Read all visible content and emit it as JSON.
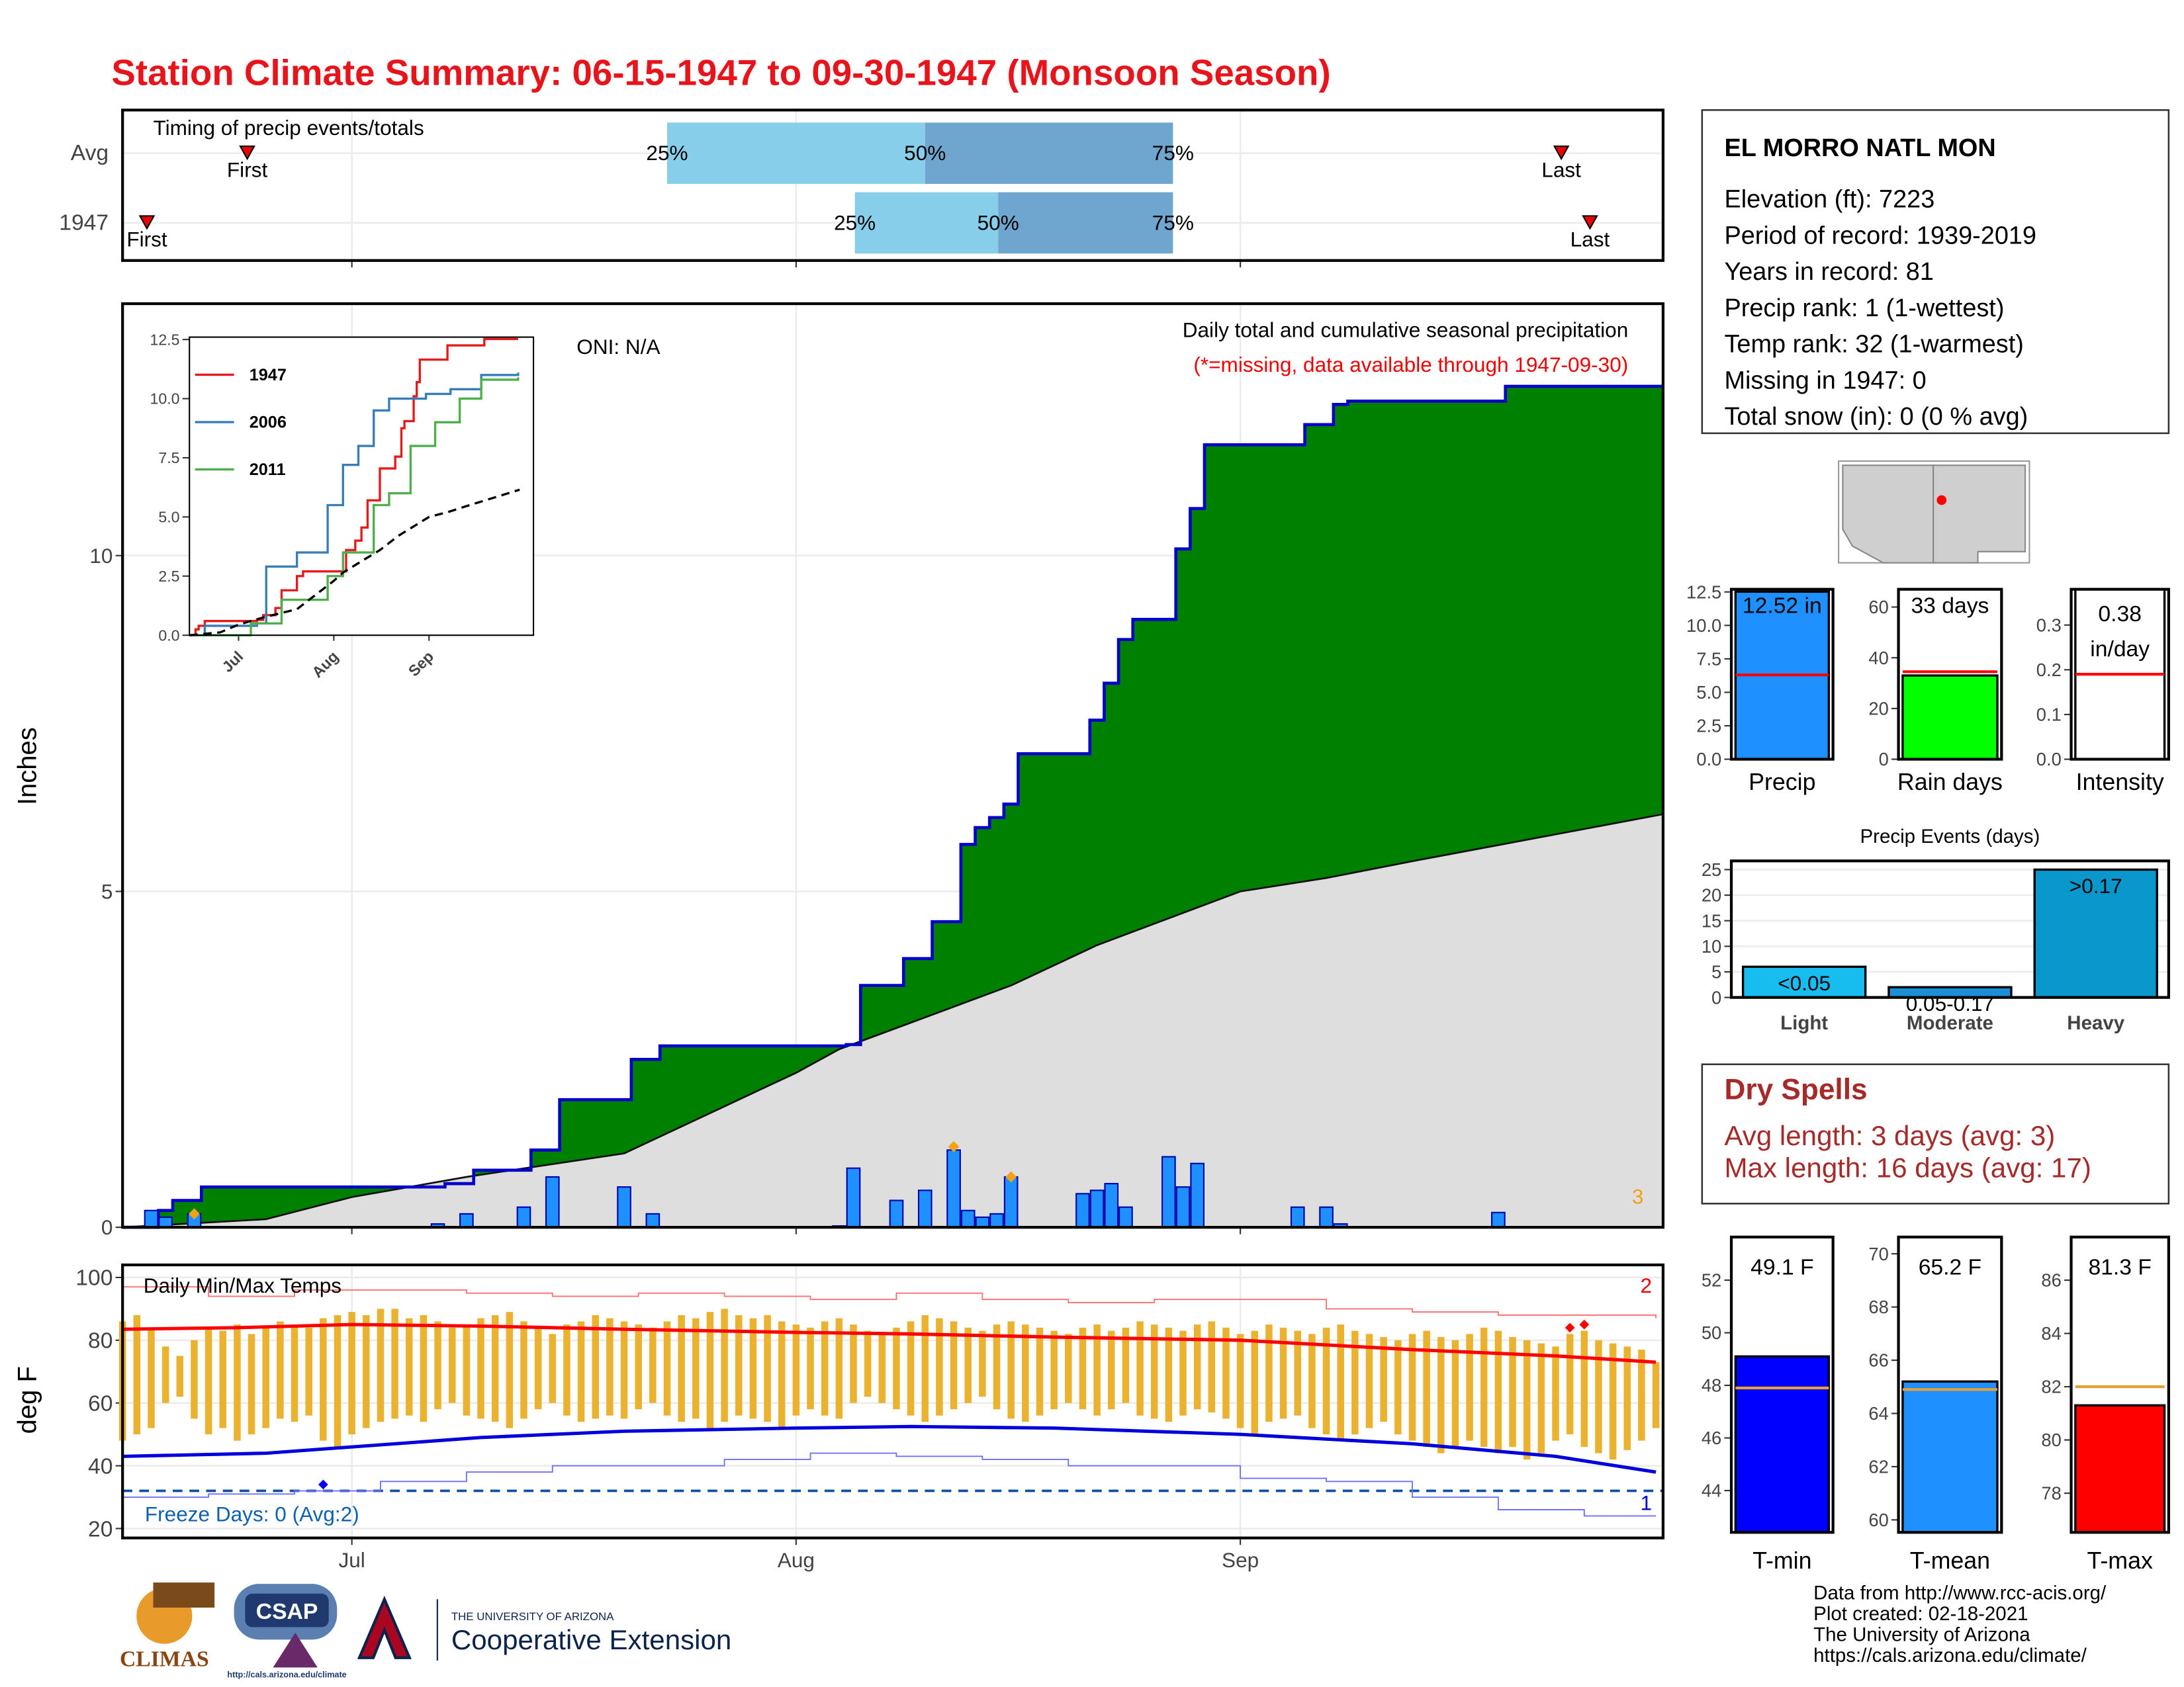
{
  "title": "Station Climate Summary: 06-15-1947 to 09-30-1947 (Monsoon Season)",
  "station": {
    "name": "EL MORRO NATL MON",
    "lines": [
      "Elevation (ft): 7223",
      "Period of record: 1939-2019",
      "Years in record: 81",
      "Precip rank: 1 (1-wettest)",
      "Temp rank: 32 (1-warmest)",
      "Missing in 1947: 0",
      "Total snow (in): 0 (0 % avg)"
    ]
  },
  "dry_spells": {
    "title": "Dry Spells",
    "lines": [
      "Avg length: 3 days (avg: 3)",
      "Max length: 16 days (avg: 17)"
    ]
  },
  "footer": [
    "Data from http://www.rcc-acis.org/",
    "Plot created: 02-18-2021",
    "The University of Arizona",
    "https://cals.arizona.edu/climate/"
  ],
  "logos": {
    "climas": "CLIMAS",
    "csap": "CSAP",
    "csap_url": "http://cals.arizona.edu/climate",
    "university": "THE UNIVERSITY OF ARIZONA",
    "extension": "Cooperative Extension"
  },
  "chart_data": [
    {
      "type": "timing",
      "title": "Timing of precip events/totals",
      "categories": [
        "Avg",
        "1947"
      ],
      "rows": [
        {
          "first": 8.7,
          "q25": 38,
          "q50": 56,
          "q75": 73.3,
          "last": 100.4
        },
        {
          "first": 1.7,
          "q25": 51.1,
          "q50": 61.1,
          "q75": 73.3,
          "last": 102.4
        }
      ],
      "marker_labels": {
        "first": "First",
        "last": "Last",
        "q25": "25%",
        "q50": "50%",
        "q75": "75%"
      },
      "xlim": [
        0,
        107.5
      ],
      "xticks": [
        {
          "value": 16,
          "label": "Jul"
        },
        {
          "value": 47,
          "label": "Aug"
        },
        {
          "value": 78,
          "label": "Sep"
        }
      ]
    },
    {
      "type": "area",
      "ylabel": "Inches",
      "oni": "ONI: N/A",
      "subtitle": "Daily total and cumulative seasonal precipitation",
      "note": "(*=missing, data available through 1947-09-30)",
      "corner_label": "3",
      "xlim": [
        0,
        107.5
      ],
      "xticks": [
        {
          "value": 16,
          "label": "Jul"
        },
        {
          "value": 47,
          "label": "Aug"
        },
        {
          "value": 78,
          "label": "Sep"
        }
      ],
      "ylim": [
        0,
        13.75
      ],
      "yticks": [
        0,
        5,
        10
      ],
      "grid": true,
      "daily": {
        "color": "#1e90ff",
        "x": [
          2,
          3,
          5,
          22,
          24,
          28,
          30,
          35,
          37,
          50,
          51,
          54,
          56,
          58,
          59,
          60,
          61,
          62,
          67,
          68,
          69,
          70,
          73,
          74,
          75,
          82,
          84,
          85,
          96
        ],
        "values": [
          0.25,
          0.15,
          0.2,
          0.05,
          0.2,
          0.3,
          0.75,
          0.6,
          0.2,
          0.02,
          0.88,
          0.4,
          0.55,
          1.15,
          0.25,
          0.15,
          0.2,
          0.75,
          0.5,
          0.55,
          0.65,
          0.3,
          1.05,
          0.6,
          0.95,
          0.3,
          0.3,
          0.05,
          0.22
        ]
      },
      "cumulative_color": "#008000",
      "average": {
        "color": "#dedede",
        "x": [
          0,
          10,
          16,
          24,
          35,
          42,
          47,
          50,
          62,
          68,
          73,
          78,
          84,
          90,
          107.5
        ],
        "values": [
          0,
          0.12,
          0.45,
          0.75,
          1.1,
          1.8,
          2.3,
          2.65,
          3.6,
          4.2,
          4.6,
          5.0,
          5.2,
          5.45,
          6.15
        ]
      },
      "markers": {
        "color": "#f4a018",
        "x": [
          5,
          58,
          62
        ],
        "values": [
          0.2,
          1.2,
          0.75
        ]
      }
    },
    {
      "type": "line",
      "xlim": [
        0,
        112
      ],
      "xticks": [
        {
          "value": 16,
          "label": "Jul"
        },
        {
          "value": 47,
          "label": "Aug"
        },
        {
          "value": 78,
          "label": "Sep"
        }
      ],
      "ylim": [
        0,
        12.6
      ],
      "yticks": [
        {
          "value": 0,
          "label": "0.0"
        },
        2.5,
        {
          "value": 5,
          "label": "5.0"
        },
        7.5,
        {
          "value": 10,
          "label": "10.0"
        },
        12.5
      ],
      "series": [
        {
          "name": "1947",
          "color": "#e41a1c",
          "x": [
            0,
            2,
            3,
            5,
            22,
            24,
            28,
            30,
            35,
            37,
            51,
            54,
            56,
            58,
            62,
            67,
            69,
            70,
            73,
            74,
            75,
            84,
            96,
            107
          ],
          "values": [
            0,
            0.25,
            0.4,
            0.6,
            0.65,
            0.85,
            1.15,
            1.9,
            2.5,
            2.7,
            3.6,
            4.0,
            4.55,
            5.7,
            7.05,
            7.55,
            8.75,
            9.05,
            10.1,
            10.7,
            11.65,
            12.25,
            12.52,
            12.52
          ]
        },
        {
          "name": "2006",
          "color": "#377eb8",
          "x": [
            0,
            5,
            22,
            25,
            35,
            45,
            50,
            55,
            60,
            65,
            77,
            85,
            95,
            107
          ],
          "values": [
            0,
            0.4,
            0.5,
            2.9,
            3.5,
            5.5,
            7.2,
            8.0,
            9.5,
            10.0,
            10.2,
            10.4,
            11.0,
            11.1
          ]
        },
        {
          "name": "2011",
          "color": "#4daf4a",
          "x": [
            0,
            10,
            20,
            30,
            45,
            50,
            60,
            65,
            72,
            80,
            88,
            95,
            107
          ],
          "values": [
            0,
            0,
            0.5,
            1.5,
            2.5,
            3.5,
            5.5,
            6.0,
            8.0,
            9.0,
            10.0,
            10.8,
            10.9
          ]
        },
        {
          "color": "#000000",
          "dash": "dashed",
          "x": [
            0,
            10,
            16,
            24,
            35,
            42,
            47,
            50,
            62,
            68,
            73,
            78,
            84,
            90,
            107.5
          ],
          "values": [
            0,
            0.12,
            0.45,
            0.75,
            1.1,
            1.8,
            2.3,
            2.65,
            3.6,
            4.2,
            4.6,
            5.0,
            5.2,
            5.45,
            6.15
          ]
        }
      ]
    },
    {
      "type": "range",
      "title": "Daily Min/Max Temps",
      "ylabel": "deg F",
      "freeze_text": "Freeze Days: 0 (Avg:2)",
      "high_count": "2",
      "low_count": "1",
      "xlim": [
        0,
        107.5
      ],
      "xticks": [
        {
          "value": 16,
          "label": "Jul"
        },
        {
          "value": 47,
          "label": "Aug"
        },
        {
          "value": 78,
          "label": "Sep"
        }
      ],
      "ylim": [
        17,
        104
      ],
      "yticks": [
        20,
        40,
        60,
        80,
        100
      ],
      "grid": true,
      "bar_color": "#ebb22f",
      "x": [
        0,
        1,
        2,
        3,
        4,
        5,
        6,
        7,
        8,
        9,
        10,
        11,
        12,
        13,
        14,
        15,
        16,
        17,
        18,
        19,
        20,
        21,
        22,
        23,
        24,
        25,
        26,
        27,
        28,
        29,
        30,
        31,
        32,
        33,
        34,
        35,
        36,
        37,
        38,
        39,
        40,
        41,
        42,
        43,
        44,
        45,
        46,
        47,
        48,
        49,
        50,
        51,
        52,
        53,
        54,
        55,
        56,
        57,
        58,
        59,
        60,
        61,
        62,
        63,
        64,
        65,
        66,
        67,
        68,
        69,
        70,
        71,
        72,
        73,
        74,
        75,
        76,
        77,
        78,
        79,
        80,
        81,
        82,
        83,
        84,
        85,
        86,
        87,
        88,
        89,
        90,
        91,
        92,
        93,
        94,
        95,
        96,
        97,
        98,
        99,
        100,
        101,
        102,
        103,
        104,
        105,
        106,
        107
      ],
      "max": [
        86,
        88,
        84,
        78,
        75,
        80,
        84,
        83,
        85,
        82,
        84,
        86,
        85,
        84,
        87,
        88,
        89,
        88,
        90,
        90,
        87,
        88,
        86,
        84,
        85,
        87,
        88,
        89,
        86,
        84,
        82,
        85,
        86,
        88,
        87,
        86,
        85,
        84,
        86,
        88,
        87,
        89,
        90,
        88,
        87,
        88,
        86,
        85,
        84,
        86,
        87,
        85,
        83,
        82,
        84,
        86,
        88,
        87,
        86,
        84,
        83,
        85,
        86,
        85,
        84,
        83,
        82,
        84,
        85,
        83,
        84,
        86,
        85,
        84,
        83,
        85,
        86,
        84,
        82,
        83,
        85,
        84,
        83,
        82,
        84,
        85,
        83,
        82,
        81,
        80,
        82,
        83,
        81,
        80,
        82,
        84,
        83,
        81,
        80,
        79,
        78,
        82,
        83,
        80,
        79,
        78,
        77,
        73
      ],
      "min": [
        48,
        50,
        52,
        60,
        62,
        55,
        50,
        52,
        48,
        50,
        52,
        55,
        54,
        56,
        48,
        46,
        50,
        52,
        54,
        55,
        56,
        54,
        58,
        60,
        56,
        55,
        54,
        52,
        55,
        58,
        60,
        56,
        54,
        55,
        56,
        55,
        58,
        60,
        56,
        54,
        55,
        52,
        54,
        56,
        55,
        54,
        52,
        56,
        58,
        56,
        55,
        60,
        62,
        60,
        58,
        56,
        54,
        56,
        58,
        60,
        62,
        58,
        55,
        54,
        56,
        58,
        60,
        58,
        56,
        58,
        60,
        56,
        55,
        54,
        56,
        58,
        57,
        55,
        52,
        50,
        54,
        55,
        56,
        52,
        50,
        48,
        50,
        52,
        54,
        50,
        48,
        46,
        44,
        46,
        48,
        46,
        44,
        46,
        42,
        44,
        48,
        50,
        46,
        44,
        42,
        45,
        48,
        52
      ],
      "record_high": {
        "color": "#ff7070",
        "x": [
          0,
          6,
          12,
          18,
          24,
          30,
          36,
          42,
          48,
          54,
          60,
          66,
          72,
          78,
          84,
          90,
          96,
          102,
          107
        ],
        "values": [
          97,
          94,
          96,
          96,
          95,
          94,
          95,
          94,
          93,
          95,
          93,
          92,
          93,
          93,
          90,
          89,
          88,
          88,
          87
        ]
      },
      "avg_max": {
        "color": "#ff0000",
        "x": [
          0,
          8,
          16,
          25,
          35,
          47,
          55,
          65,
          78,
          90,
          100,
          107
        ],
        "values": [
          83.5,
          84,
          85,
          84.5,
          83.5,
          82.5,
          82,
          81,
          80,
          77,
          75,
          73
        ]
      },
      "avg_min": {
        "color": "#0000dd",
        "x": [
          0,
          10,
          16,
          25,
          35,
          47,
          55,
          65,
          78,
          90,
          100,
          107
        ],
        "values": [
          43,
          44,
          46,
          49,
          51,
          52,
          52.5,
          52,
          50,
          47,
          43,
          38
        ]
      },
      "record_low": {
        "color": "#7070ff",
        "x": [
          0,
          6,
          12,
          18,
          24,
          30,
          36,
          42,
          48,
          54,
          60,
          66,
          72,
          78,
          84,
          90,
          96,
          102,
          107
        ],
        "values": [
          30,
          31,
          32,
          35,
          38,
          40,
          40,
          42,
          44,
          43,
          42,
          40,
          40,
          36,
          35,
          30,
          26,
          24,
          24
        ]
      },
      "freeze": {
        "color": "#1050a0",
        "value": 32
      },
      "high_markers": {
        "color": "#ff0000",
        "x": [
          101,
          102
        ],
        "values": [
          84,
          85
        ]
      },
      "low_markers": {
        "color": "#0000ff",
        "x": [
          14
        ],
        "values": [
          34
        ]
      }
    },
    {
      "type": "bar",
      "categories": [
        "Precip"
      ],
      "values": [
        12.52
      ],
      "value_labels": [
        "12.52 in"
      ],
      "average": 6.3,
      "average_color": "#ff0000",
      "color": "#1e90ff",
      "ylim": [
        0,
        12.7
      ],
      "yticks": [
        {
          "value": 0,
          "label": "0.0"
        },
        2.5,
        {
          "value": 5,
          "label": "5.0"
        },
        7.5,
        {
          "value": 10,
          "label": "10.0"
        },
        12.5
      ]
    },
    {
      "type": "bar",
      "categories": [
        "Rain days"
      ],
      "values": [
        33
      ],
      "value_labels": [
        "33 days"
      ],
      "average": 34.5,
      "average_color": "#ff0000",
      "color": "#00ff00",
      "ylim": [
        0,
        67
      ],
      "yticks": [
        0,
        20,
        40,
        60
      ]
    },
    {
      "type": "bar",
      "categories": [
        "Intensity"
      ],
      "values": [
        0.38
      ],
      "value_labels": [
        "0.38 in/day"
      ],
      "average": 0.19,
      "average_color": "#ff0000",
      "color": "#ffffff",
      "ylim": [
        0,
        0.38
      ],
      "yticks": [
        {
          "value": 0,
          "label": "0.0"
        },
        0.1,
        0.2,
        0.3
      ]
    },
    {
      "type": "bar",
      "title": "Precip Events (days)",
      "categories": [
        "Light",
        "Moderate",
        "Heavy"
      ],
      "values": [
        6,
        2,
        25
      ],
      "bin_labels": [
        "<0.05",
        "0.05-0.17",
        ">0.17"
      ],
      "colors": [
        "#18bdf0",
        "#1a8fd6",
        "#0a98cc"
      ],
      "ylim": [
        0,
        26.7
      ],
      "yticks": [
        0,
        5,
        10,
        15,
        20,
        25
      ]
    },
    {
      "type": "bar",
      "categories": [
        "T-min"
      ],
      "values": [
        49.1
      ],
      "value_labels": [
        "49.1 F"
      ],
      "average": 47.9,
      "average_color": "#e8a030",
      "color": "#0000ff",
      "ylim": [
        42.41,
        53.64
      ],
      "yticks": [
        44,
        46,
        48,
        50,
        52
      ]
    },
    {
      "type": "bar",
      "categories": [
        "T-mean"
      ],
      "values": [
        65.2
      ],
      "value_labels": [
        "65.2 F"
      ],
      "average": 64.9,
      "average_color": "#e8a030",
      "color": "#1e90ff",
      "ylim": [
        59.53,
        70.63
      ],
      "yticks": [
        60,
        62,
        64,
        66,
        68,
        70
      ]
    },
    {
      "type": "bar",
      "categories": [
        "T-max"
      ],
      "values": [
        81.3
      ],
      "value_labels": [
        "81.3 F"
      ],
      "average": 82.0,
      "average_color": "#e8a030",
      "color": "#ff0000",
      "ylim": [
        76.53,
        87.62
      ],
      "yticks": [
        78,
        80,
        82,
        84,
        86
      ]
    }
  ]
}
